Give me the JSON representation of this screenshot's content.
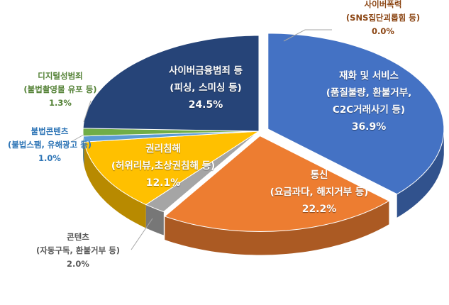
{
  "chart_data": {
    "type": "pie",
    "title": "",
    "slices": [
      {
        "name": "재화 및 서비스",
        "detail": "(품질불량, 환불거부, C2C거래사기 등)",
        "value": 36.9,
        "value_label": "36.9%",
        "color": "#4472C4"
      },
      {
        "name": "통신",
        "detail": "(요금과다, 해지거부 등)",
        "value": 22.2,
        "value_label": "22.2%",
        "color": "#ED7D31"
      },
      {
        "name": "콘텐츠",
        "detail": "(자동구독, 환불거부 등)",
        "value": 2.0,
        "value_label": "2.0%",
        "color": "#A5A5A5"
      },
      {
        "name": "권리침해",
        "detail": "(허위리뷰,초상권침해 등)",
        "value": 12.1,
        "value_label": "12.1%",
        "color": "#FFC000"
      },
      {
        "name": "불법콘텐츠",
        "detail": "(불법스팸, 유해광고 등)",
        "value": 1.0,
        "value_label": "1.0%",
        "color": "#5B9BD5"
      },
      {
        "name": "디지털성범죄",
        "detail": "(불법촬영물 유포 등)",
        "value": 1.3,
        "value_label": "1.3%",
        "color": "#70AD47"
      },
      {
        "name": "사이버금융범죄 등",
        "detail": "(피싱, 스미싱 등)",
        "value": 24.5,
        "value_label": "24.5%",
        "color": "#264478"
      },
      {
        "name": "사이버폭력",
        "detail": "(SNS집단괴롭힘 등)",
        "value": 0.0,
        "value_label": "0.0%",
        "color": "#7F3F00"
      }
    ],
    "detail_lines": {
      "goods": [
        "(품질불량, 환불거부,",
        "C2C거래사기 등)"
      ]
    },
    "label_colors": {
      "cyber_violence": "#8B4513",
      "digital_sex": "#538135",
      "illegal_content": "#2E75B6",
      "content": "#595959"
    },
    "start_angle_deg": 90,
    "direction": "clockwise",
    "style": "3d-exploded",
    "legend": "none"
  }
}
